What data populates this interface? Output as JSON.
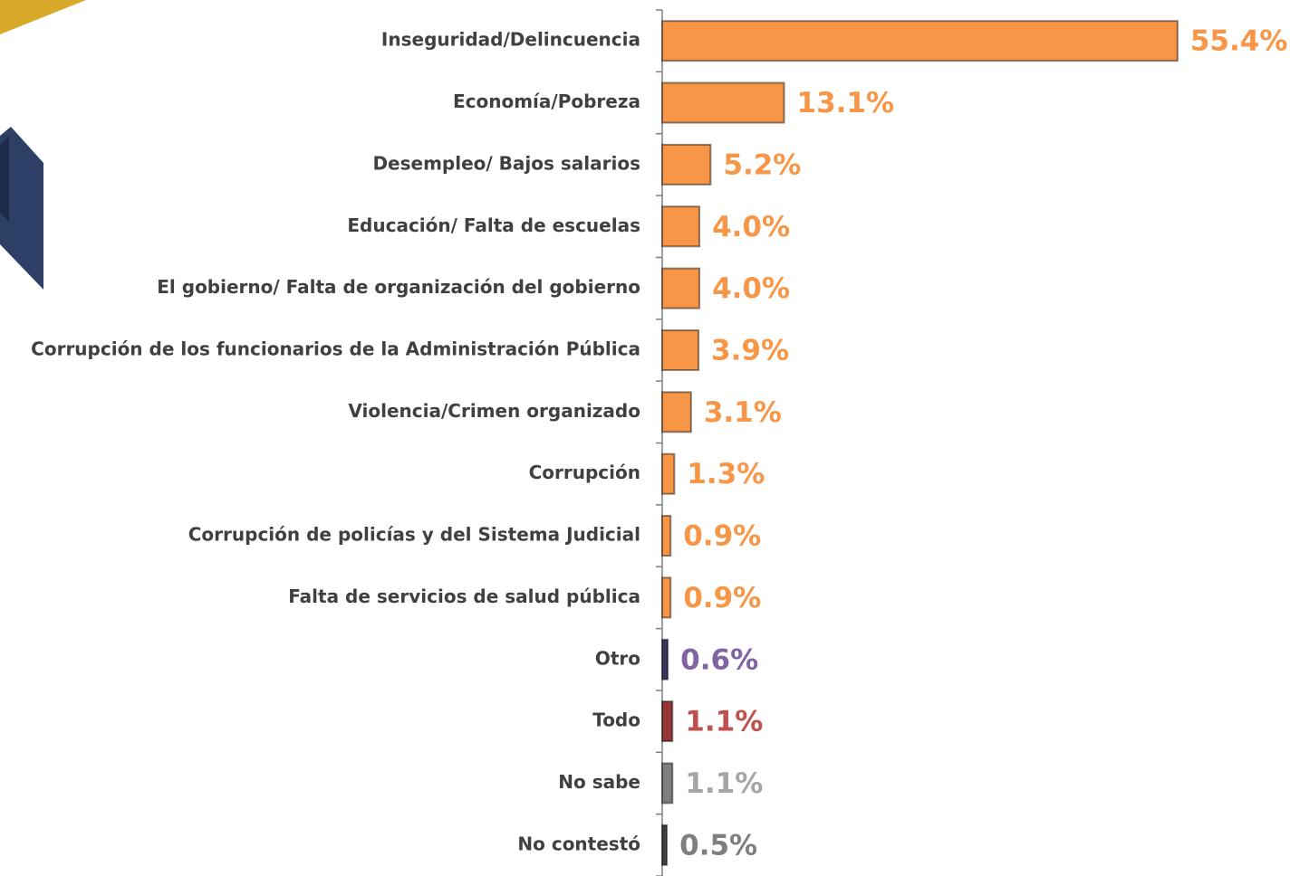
{
  "chart_data": {
    "type": "hbar",
    "categories": [
      "Inseguridad/Delincuencia",
      "Economía/Pobreza",
      "Desempleo/ Bajos salarios",
      "Educación/ Falta de escuelas",
      "El gobierno/ Falta de organización del gobierno",
      "Corrupción de los funcionarios de la Administración Pública",
      "Violencia/Crimen organizado",
      "Corrupción",
      "Corrupción de policías y del Sistema Judicial",
      "Falta de servicios de salud pública",
      "Otro",
      "Todo",
      "No sabe",
      "No contestó"
    ],
    "values": [
      55.4,
      13.1,
      5.2,
      4.0,
      4.0,
      3.9,
      3.1,
      1.3,
      0.9,
      0.9,
      0.6,
      1.1,
      1.1,
      0.5
    ],
    "value_labels": [
      "55.4%",
      "13.1%",
      "5.2%",
      "4.0%",
      "4.0%",
      "3.9%",
      "3.1%",
      "1.3%",
      "0.9%",
      "0.9%",
      "0.6%",
      "1.1%",
      "1.1%",
      "0.5%"
    ],
    "colors": [
      "#f79646",
      "#f79646",
      "#f79646",
      "#f79646",
      "#f79646",
      "#f79646",
      "#f79646",
      "#f79646",
      "#f79646",
      "#f79646",
      "#3b3560",
      "#953735",
      "#7f7f7f",
      "#404040"
    ],
    "label_colors": [
      "#f79646",
      "#f79646",
      "#f79646",
      "#f79646",
      "#f79646",
      "#f79646",
      "#f79646",
      "#f79646",
      "#f79646",
      "#f79646",
      "#8064a2",
      "#c0504d",
      "#a6a6a6",
      "#7f7f7f"
    ],
    "xlim": [
      0,
      56
    ]
  }
}
